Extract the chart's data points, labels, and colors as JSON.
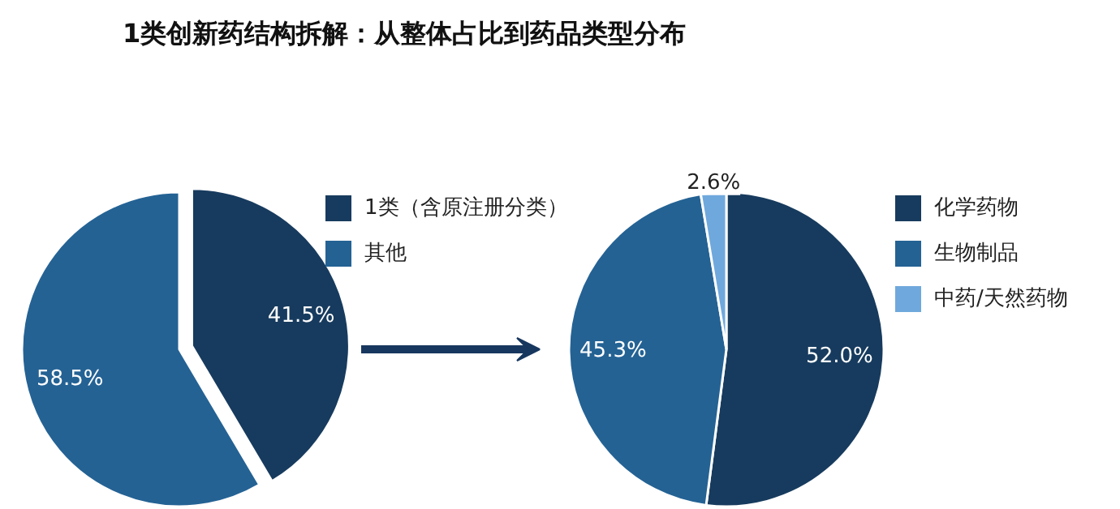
{
  "chart_data": [
    {
      "type": "pie",
      "title": "1类创新药结构拆解：从整体占比到药品类型分布",
      "categories": [
        "1类（含原注册分类）",
        "其他"
      ],
      "values": [
        41.5,
        58.5
      ],
      "colors": [
        "#173b5e",
        "#246294"
      ],
      "value_labels": [
        "41.5%",
        "58.5%"
      ],
      "legend": "right"
    },
    {
      "type": "pie",
      "categories": [
        "化学药物",
        "生物制品",
        "中药/天然药物"
      ],
      "values": [
        52.0,
        45.3,
        2.6
      ],
      "colors": [
        "#173b5e",
        "#246294",
        "#6fa8dc"
      ],
      "value_labels": [
        "52.0%",
        "45.3%",
        "2.6%"
      ],
      "legend": "right"
    }
  ]
}
